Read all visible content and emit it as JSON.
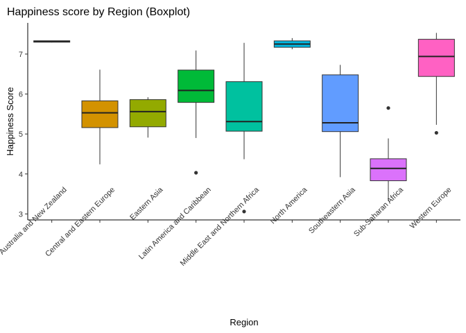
{
  "chart_data": {
    "type": "boxplot",
    "title": "Happiness score by Region (Boxplot)",
    "xlabel": "Region",
    "ylabel": "Happiness Score",
    "ylim": [
      2.85,
      7.78
    ],
    "yticks": [
      3,
      4,
      5,
      6,
      7
    ],
    "grid": false,
    "legend": "none",
    "categories": [
      "Australia and New Zealand",
      "Central and Eastern Europe",
      "Eastern Asia",
      "Latin America and Caribbean",
      "Middle East and Northern Africa",
      "North America",
      "Southeastern Asia",
      "Sub-Saharan Africa",
      "Western Europe"
    ],
    "boxes": [
      {
        "category": "Australia and New Zealand",
        "min": 7.29,
        "q1": 7.3,
        "median": 7.32,
        "q3": 7.33,
        "max": 7.33,
        "outliers": [],
        "color": "#F8766D"
      },
      {
        "category": "Central and Eastern Europe",
        "min": 4.24,
        "q1": 5.16,
        "median": 5.53,
        "q3": 5.83,
        "max": 6.61,
        "outliers": [],
        "color": "#D39200"
      },
      {
        "category": "Eastern Asia",
        "min": 4.91,
        "q1": 5.18,
        "median": 5.56,
        "q3": 5.86,
        "max": 5.92,
        "outliers": [],
        "color": "#93AA00"
      },
      {
        "category": "Latin America and Caribbean",
        "min": 4.9,
        "q1": 5.79,
        "median": 6.09,
        "q3": 6.6,
        "max": 7.09,
        "outliers": [
          4.03
        ],
        "color": "#00BA38"
      },
      {
        "category": "Middle East and Northern Africa",
        "min": 4.37,
        "q1": 5.07,
        "median": 5.31,
        "q3": 6.31,
        "max": 7.28,
        "outliers": [
          3.06
        ],
        "color": "#00C19F"
      },
      {
        "category": "North America",
        "min": 7.12,
        "q1": 7.17,
        "median": 7.25,
        "q3": 7.33,
        "max": 7.4,
        "outliers": [],
        "color": "#00B9E3"
      },
      {
        "category": "Southeastern Asia",
        "min": 3.92,
        "q1": 5.06,
        "median": 5.28,
        "q3": 6.48,
        "max": 6.73,
        "outliers": [],
        "color": "#619CFF"
      },
      {
        "category": "Sub-Saharan Africa",
        "min": 3.32,
        "q1": 3.83,
        "median": 4.14,
        "q3": 4.38,
        "max": 4.89,
        "outliers": [
          5.65
        ],
        "color": "#DB72FB"
      },
      {
        "category": "Western Europe",
        "min": 5.23,
        "q1": 6.44,
        "median": 6.94,
        "q3": 7.37,
        "max": 7.53,
        "outliers": [
          5.03
        ],
        "color": "#FF61C3"
      }
    ]
  }
}
